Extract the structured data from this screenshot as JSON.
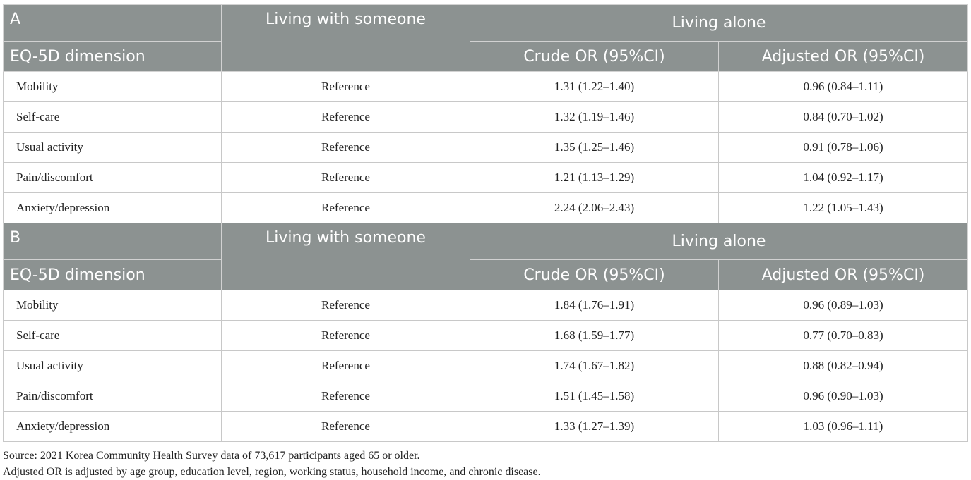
{
  "header": {
    "col_living_with": "Living with someone",
    "col_living_alone": "Living alone",
    "col_dimension": "EQ-5D dimension",
    "col_crude": "Crude OR (95%CI)",
    "col_adjusted": "Adjusted OR (95%CI)"
  },
  "blocks": [
    {
      "label": "A",
      "rows": [
        {
          "dimension": "Mobility",
          "reference": "Reference",
          "crude": "1.31 (1.22–1.40)",
          "adjusted": "0.96 (0.84–1.11)"
        },
        {
          "dimension": "Self-care",
          "reference": "Reference",
          "crude": "1.32 (1.19–1.46)",
          "adjusted": "0.84 (0.70–1.02)"
        },
        {
          "dimension": "Usual activity",
          "reference": "Reference",
          "crude": "1.35 (1.25–1.46)",
          "adjusted": "0.91 (0.78–1.06)"
        },
        {
          "dimension": "Pain/discomfort",
          "reference": "Reference",
          "crude": "1.21 (1.13–1.29)",
          "adjusted": "1.04 (0.92–1.17)"
        },
        {
          "dimension": "Anxiety/depression",
          "reference": "Reference",
          "crude": "2.24 (2.06–2.43)",
          "adjusted": "1.22 (1.05–1.43)"
        }
      ]
    },
    {
      "label": "B",
      "rows": [
        {
          "dimension": "Mobility",
          "reference": "Reference",
          "crude": "1.84 (1.76–1.91)",
          "adjusted": "0.96 (0.89–1.03)"
        },
        {
          "dimension": "Self-care",
          "reference": "Reference",
          "crude": "1.68 (1.59–1.77)",
          "adjusted": "0.77 (0.70–0.83)"
        },
        {
          "dimension": "Usual activity",
          "reference": "Reference",
          "crude": "1.74 (1.67–1.82)",
          "adjusted": "0.88 (0.82–0.94)"
        },
        {
          "dimension": "Pain/discomfort",
          "reference": "Reference",
          "crude": "1.51 (1.45–1.58)",
          "adjusted": "0.96 (0.90–1.03)"
        },
        {
          "dimension": "Anxiety/depression",
          "reference": "Reference",
          "crude": "1.33 (1.27–1.39)",
          "adjusted": "1.03 (0.96–1.11)"
        }
      ]
    }
  ],
  "notes": {
    "source": "Source: 2021 Korea Community Health Survey data of 73,617 participants aged 65 or older.",
    "adjusted": "Adjusted OR is adjusted by age group, education level, region, working status, household income, and chronic disease."
  },
  "colors": {
    "header_bg": "#8c9291",
    "header_text": "#ffffff",
    "grid": "#c8c8c8"
  }
}
